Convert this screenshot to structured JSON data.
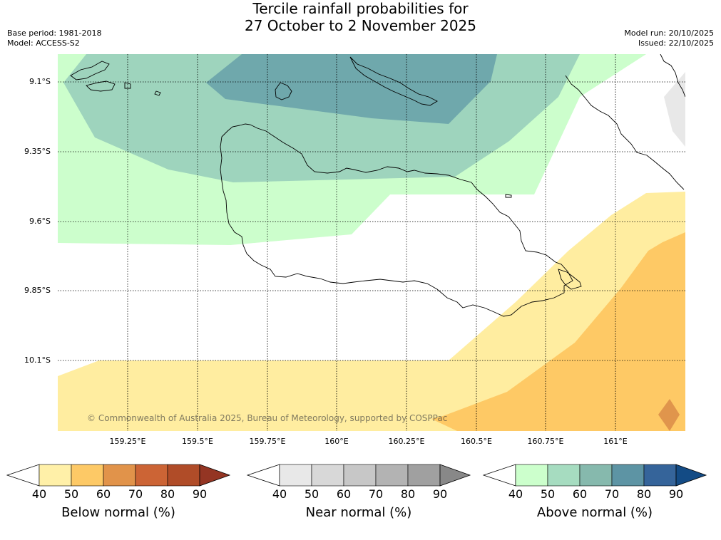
{
  "title_line1": "Tercile rainfall probabilities for",
  "title_line2": "27 October to 2 November 2025",
  "base_period": "Base period: 1981-2018",
  "model": "Model: ACCESS-S2",
  "model_run": "Model run: 20/10/2025",
  "issued": "Issued: 22/10/2025",
  "latitudes": [
    "9.1°S",
    "9.35°S",
    "9.6°S",
    "9.85°S",
    "10.1°S"
  ],
  "longitudes": [
    "159.25°E",
    "159.5°E",
    "159.75°E",
    "160°E",
    "160.25°E",
    "160.5°E",
    "160.75°E",
    "161°E"
  ],
  "copyright": "© Commonwealth of Australia 2025, Bureau of Meteorology, supported by COSPPac",
  "legends": [
    {
      "title": "Below normal (%)",
      "ticks": [
        "40",
        "50",
        "60",
        "70",
        "80",
        "90"
      ],
      "colors": [
        "#fff0a8",
        "#fdc966",
        "#e1934a",
        "#cc6435",
        "#b04c28",
        "#943523"
      ]
    },
    {
      "title": "Near normal (%)",
      "ticks": [
        "40",
        "50",
        "60",
        "70",
        "80",
        "90"
      ],
      "colors": [
        "#e8e8e8",
        "#d8d8d8",
        "#c7c7c7",
        "#b3b3b3",
        "#a0a0a0",
        "#888888"
      ]
    },
    {
      "title": "Above normal (%)",
      "ticks": [
        "40",
        "50",
        "60",
        "70",
        "80",
        "90"
      ],
      "colors": [
        "#ccffcc",
        "#a6dcc0",
        "#86b9ad",
        "#5d94a4",
        "#35649a",
        "#134b85"
      ]
    }
  ],
  "map_colors": {
    "above_40": "#ccfecc",
    "above_50": "#9ed4bd",
    "above_60": "#6fa8ac",
    "below_40": "#ffeda0",
    "below_50": "#fec965",
    "below_60": "#e0954c",
    "near_40": "#e8e8e8"
  }
}
